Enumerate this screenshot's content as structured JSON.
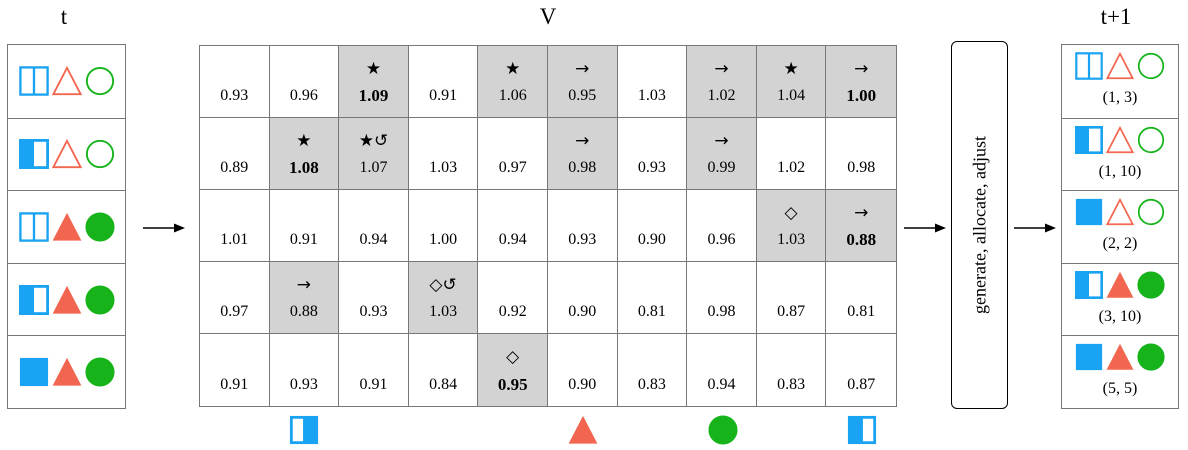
{
  "titles": {
    "left": "t",
    "middle": "V",
    "right": "t+1"
  },
  "colors": {
    "blue": "#1aa3f2",
    "red": "#f26650",
    "green": "#16b31b",
    "highlight": "#d3d3d3"
  },
  "left_rows": [
    {
      "square": "outline-split",
      "triangle": "outline",
      "circle": "outline"
    },
    {
      "square": "half-filled",
      "triangle": "outline",
      "circle": "outline"
    },
    {
      "square": "outline-split",
      "triangle": "filled",
      "circle": "filled"
    },
    {
      "square": "half-filled",
      "triangle": "filled",
      "circle": "filled"
    },
    {
      "square": "filled",
      "triangle": "filled",
      "circle": "filled"
    }
  ],
  "grid": [
    [
      {
        "value": "0.93"
      },
      {
        "value": "0.96"
      },
      {
        "value": "1.09",
        "mark": "★",
        "bold": true,
        "highlight": true
      },
      {
        "value": "0.91"
      },
      {
        "value": "1.06",
        "mark": "★",
        "highlight": true
      },
      {
        "value": "0.95",
        "mark": "→",
        "highlight": true
      },
      {
        "value": "1.03"
      },
      {
        "value": "1.02",
        "mark": "→",
        "highlight": true
      },
      {
        "value": "1.04",
        "mark": "★",
        "highlight": true
      },
      {
        "value": "1.00",
        "mark": "→",
        "bold": true,
        "highlight": true
      }
    ],
    [
      {
        "value": "0.89"
      },
      {
        "value": "1.08",
        "mark": "★",
        "bold": true,
        "highlight": true
      },
      {
        "value": "1.07",
        "mark": "★↺",
        "highlight": true
      },
      {
        "value": "1.03"
      },
      {
        "value": "0.97"
      },
      {
        "value": "0.98",
        "mark": "→",
        "highlight": true
      },
      {
        "value": "0.93"
      },
      {
        "value": "0.99",
        "mark": "→",
        "highlight": true
      },
      {
        "value": "1.02"
      },
      {
        "value": "0.98"
      }
    ],
    [
      {
        "value": "1.01"
      },
      {
        "value": "0.91"
      },
      {
        "value": "0.94"
      },
      {
        "value": "1.00"
      },
      {
        "value": "0.94"
      },
      {
        "value": "0.93"
      },
      {
        "value": "0.90"
      },
      {
        "value": "0.96"
      },
      {
        "value": "1.03",
        "mark": "◇",
        "highlight": true
      },
      {
        "value": "0.88",
        "mark": "→",
        "bold": true,
        "highlight": true
      }
    ],
    [
      {
        "value": "0.97"
      },
      {
        "value": "0.88",
        "mark": "→",
        "highlight": true
      },
      {
        "value": "0.93"
      },
      {
        "value": "1.03",
        "mark": "◇↺",
        "highlight": true
      },
      {
        "value": "0.92"
      },
      {
        "value": "0.90"
      },
      {
        "value": "0.81"
      },
      {
        "value": "0.98"
      },
      {
        "value": "0.87"
      },
      {
        "value": "0.81"
      }
    ],
    [
      {
        "value": "0.91"
      },
      {
        "value": "0.93"
      },
      {
        "value": "0.91"
      },
      {
        "value": "0.84"
      },
      {
        "value": "0.95",
        "mark": "◇",
        "bold": true,
        "highlight": true
      },
      {
        "value": "0.90"
      },
      {
        "value": "0.83"
      },
      {
        "value": "0.94"
      },
      {
        "value": "0.83"
      },
      {
        "value": "0.87"
      }
    ]
  ],
  "bottom_icons": [
    {
      "column": 2,
      "shape": "square-half-left-white"
    },
    {
      "column": 6,
      "shape": "triangle-filled"
    },
    {
      "column": 8,
      "shape": "circle-filled"
    },
    {
      "column": 10,
      "shape": "square-half-right-white"
    }
  ],
  "process_label": "generate, allocate, adjust",
  "right_rows": [
    {
      "square": "outline-split",
      "triangle": "outline",
      "circle": "outline",
      "label": "(1, 3)"
    },
    {
      "square": "half-filled",
      "triangle": "outline",
      "circle": "outline",
      "label": "(1, 10)"
    },
    {
      "square": "filled",
      "triangle": "outline",
      "circle": "outline",
      "label": "(2, 2)"
    },
    {
      "square": "half-filled",
      "triangle": "filled",
      "circle": "filled",
      "label": "(3, 10)"
    },
    {
      "square": "filled",
      "triangle": "filled",
      "circle": "filled",
      "label": "(5, 5)"
    }
  ]
}
